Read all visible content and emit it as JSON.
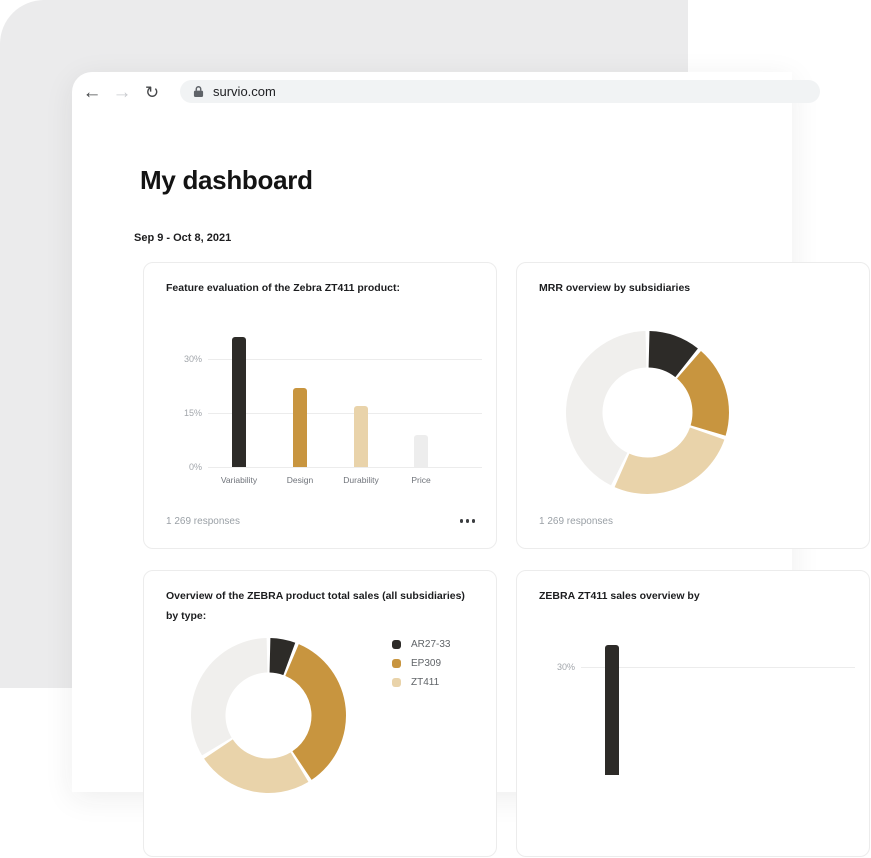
{
  "browser": {
    "url": "survio.com",
    "toolbar": {
      "back": "←",
      "forward": "→",
      "reload": "↻"
    }
  },
  "page": {
    "title": "My dashboard",
    "date_range": "Sep 9 - Oct 8, 2021"
  },
  "cards": [
    {
      "title": "Feature evaluation of the Zebra ZT411 product:",
      "responses": "1 269 responses",
      "menu_icon": "overflow-ellipsis"
    },
    {
      "title": "MRR overview by subsidiaries",
      "responses": "1 269 responses"
    },
    {
      "title": "Overview of the ZEBRA product total sales (all subsidiaries) by type:"
    },
    {
      "title": "ZEBRA ZT411 sales overview by"
    }
  ],
  "colors": {
    "dark": "#2d2b28",
    "gold": "#c8953f",
    "tan": "#e9d3aa",
    "light_gray_bar": "#ededed",
    "donut_gray": "#f0efed",
    "frame_bg": "#ebebec",
    "address_pill_bg": "#f1f3f4"
  },
  "chart_data": [
    {
      "type": "bar",
      "title": "Feature evaluation of the Zebra ZT411 product:",
      "categories": [
        "Variability",
        "Design",
        "Durability",
        "Price"
      ],
      "values": [
        36,
        22,
        17,
        9
      ],
      "unit": "%",
      "colors": [
        "#2d2b28",
        "#c8953f",
        "#e9d3aa",
        "#ededed"
      ],
      "yticks": [
        {
          "label": "0%",
          "value": 0
        },
        {
          "label": "15%",
          "value": 15
        },
        {
          "label": "30%",
          "value": 30
        }
      ],
      "ylim": [
        0,
        40
      ],
      "grid": true,
      "legend": []
    },
    {
      "type": "donut",
      "title": "MRR overview by subsidiaries",
      "segments": [
        {
          "color": "#2d2b28",
          "pct": 11
        },
        {
          "color": "#c8953f",
          "pct": 19
        },
        {
          "color": "#e9d3aa",
          "pct": 27
        },
        {
          "color": "#f0efed",
          "pct": 43
        }
      ],
      "legend": []
    },
    {
      "type": "donut",
      "title": "Overview of the ZEBRA product total sales (all subsidiaries) by type:",
      "segments": [
        {
          "label": "AR27-33",
          "color": "#2d2b28",
          "pct": 6
        },
        {
          "label": "EP309",
          "color": "#c8953f",
          "pct": 35
        },
        {
          "label": "ZT411",
          "color": "#e9d3aa",
          "pct": 25
        },
        {
          "label": "",
          "color": "#f0efed",
          "pct": 34
        }
      ],
      "legend": [
        {
          "label": "AR27-33",
          "color": "#2d2b28"
        },
        {
          "label": "EP309",
          "color": "#c8953f"
        },
        {
          "label": "ZT411",
          "color": "#e9d3aa"
        }
      ],
      "legend_position": "right"
    },
    {
      "type": "bar",
      "title": "ZEBRA ZT411 sales overview by",
      "categories": [
        ""
      ],
      "values": [
        36
      ],
      "unit": "%",
      "colors": [
        "#2d2b28"
      ],
      "yticks": [
        {
          "label": "30%",
          "value": 30
        }
      ],
      "ylim": [
        0,
        40
      ],
      "grid": true,
      "legend": []
    }
  ]
}
